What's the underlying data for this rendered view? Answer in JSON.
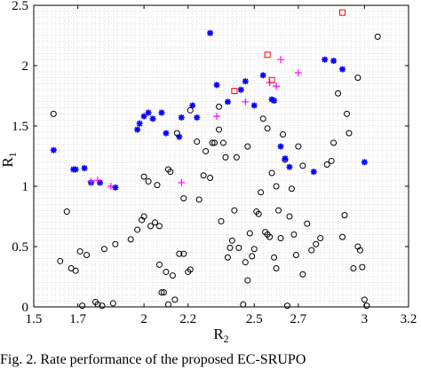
{
  "caption_fragment": "Fig. 2. Rate performance of the proposed EC-SRUPO",
  "chart_data": {
    "type": "scatter",
    "title": "",
    "xlabel": "R",
    "xlabel_sub": "2",
    "ylabel": "R",
    "ylabel_sub": "1",
    "xlim": [
      1.5,
      3.2
    ],
    "ylim": [
      0,
      2.5
    ],
    "xticks": [
      1.5,
      1.7,
      2,
      2.2,
      2.5,
      2.7,
      3,
      3.2
    ],
    "xtick_labels": [
      "1.5",
      "1.7",
      "2",
      "2.2",
      "2.5",
      "2.7",
      "3",
      "3.2"
    ],
    "yticks": [
      0,
      0.5,
      1,
      1.5,
      2,
      2.5
    ],
    "ytick_labels": [
      "0",
      "0.5",
      "1",
      "1.5",
      "2",
      "2.5"
    ],
    "grid": "minor dotted",
    "colors": {
      "circle": "#000000",
      "asterisk": "#0000ff",
      "plus": "#ff00ff",
      "square": "#ff0000"
    },
    "series": [
      {
        "marker": "circle",
        "points": [
          [
            1.59,
            1.6
          ],
          [
            1.65,
            0.79
          ],
          [
            1.62,
            0.38
          ],
          [
            1.67,
            0.32
          ],
          [
            1.69,
            0.3
          ],
          [
            1.71,
            0.46
          ],
          [
            1.74,
            0.43
          ],
          [
            1.78,
            0.04
          ],
          [
            1.79,
            0.02
          ],
          [
            1.81,
            0.01
          ],
          [
            1.82,
            0.48
          ],
          [
            1.87,
            0.52
          ],
          [
            1.94,
            0.56
          ],
          [
            1.97,
            0.64
          ],
          [
            1.99,
            0.72
          ],
          [
            2.0,
            0.75
          ],
          [
            2.0,
            1.08
          ],
          [
            2.02,
            1.04
          ],
          [
            2.03,
            0.67
          ],
          [
            2.05,
            0.7
          ],
          [
            2.06,
            1.01
          ],
          [
            2.07,
            0.35
          ],
          [
            2.08,
            0.12
          ],
          [
            2.09,
            0.12
          ],
          [
            2.1,
            0.29
          ],
          [
            2.11,
            1.14
          ],
          [
            2.12,
            1.12
          ],
          [
            2.13,
            0.26
          ],
          [
            2.14,
            0.06
          ],
          [
            2.15,
            1.44
          ],
          [
            2.16,
            0.44
          ],
          [
            2.18,
            0.44
          ],
          [
            2.2,
            0.29
          ],
          [
            2.21,
            1.63
          ],
          [
            2.24,
            1.37
          ],
          [
            2.25,
            0.89
          ],
          [
            2.27,
            1.09
          ],
          [
            2.28,
            1.29
          ],
          [
            2.3,
            1.07
          ],
          [
            2.31,
            1.36
          ],
          [
            2.32,
            1.36
          ],
          [
            2.34,
            1.47
          ],
          [
            2.35,
            0.71
          ],
          [
            2.36,
            1.36
          ],
          [
            2.37,
            1.24
          ],
          [
            2.38,
            0.41
          ],
          [
            2.39,
            0.49
          ],
          [
            2.4,
            0.55
          ],
          [
            2.41,
            0.8
          ],
          [
            2.42,
            1.24
          ],
          [
            2.43,
            0.49
          ],
          [
            2.45,
            0.02
          ],
          [
            2.46,
            0.37
          ],
          [
            2.47,
            0.22
          ],
          [
            2.48,
            0.61
          ],
          [
            2.49,
            0.42
          ],
          [
            2.5,
            0.48
          ],
          [
            2.51,
            0.79
          ],
          [
            2.52,
            0.77
          ],
          [
            2.53,
            0.95
          ],
          [
            2.54,
            1.56
          ],
          [
            2.55,
            0.62
          ],
          [
            2.56,
            0.6
          ],
          [
            2.57,
            0.58
          ],
          [
            2.58,
            1.11
          ],
          [
            2.59,
            0.41
          ],
          [
            2.6,
            0.32
          ],
          [
            2.61,
            0.8
          ],
          [
            2.62,
            0.57
          ],
          [
            2.63,
            1.43
          ],
          [
            2.64,
            1.22
          ],
          [
            2.65,
            0.01
          ],
          [
            2.66,
            0.75
          ],
          [
            2.67,
            0.98
          ],
          [
            2.68,
            0.6
          ],
          [
            2.69,
            0.43
          ],
          [
            2.7,
            1.33
          ],
          [
            2.72,
            0.27
          ],
          [
            2.74,
            0.69
          ],
          [
            2.76,
            0.47
          ],
          [
            2.78,
            0.52
          ],
          [
            2.8,
            0.57
          ],
          [
            2.83,
            1.18
          ],
          [
            2.86,
            1.36
          ],
          [
            2.88,
            1.77
          ],
          [
            2.9,
            0.58
          ],
          [
            2.91,
            0.76
          ],
          [
            2.92,
            1.6
          ],
          [
            2.93,
            1.44
          ],
          [
            2.95,
            0.32
          ],
          [
            2.97,
            0.5
          ],
          [
            2.98,
            0.47
          ],
          [
            2.99,
            0.33
          ],
          [
            3.0,
            0.06
          ],
          [
            3.01,
            0.01
          ],
          [
            2.97,
            1.9
          ],
          [
            3.06,
            2.24
          ],
          [
            2.85,
            1.21
          ],
          [
            2.72,
            1.17
          ],
          [
            2.6,
            1.0
          ],
          [
            2.47,
            1.33
          ],
          [
            2.56,
            1.48
          ],
          [
            2.34,
            1.66
          ],
          [
            2.18,
            0.9
          ],
          [
            2.07,
            0.67
          ],
          [
            1.86,
            0.03
          ],
          [
            1.72,
            0.01
          ],
          [
            2.11,
            0.02
          ],
          [
            2.21,
            0.31
          ]
        ]
      },
      {
        "marker": "asterisk",
        "points": [
          [
            1.59,
            1.3
          ],
          [
            1.68,
            1.14
          ],
          [
            1.69,
            1.14
          ],
          [
            1.73,
            1.15
          ],
          [
            1.76,
            1.03
          ],
          [
            1.8,
            1.03
          ],
          [
            1.87,
            0.99
          ],
          [
            1.97,
            1.47
          ],
          [
            1.98,
            1.52
          ],
          [
            2.0,
            1.58
          ],
          [
            2.02,
            1.61
          ],
          [
            2.04,
            1.56
          ],
          [
            2.08,
            1.61
          ],
          [
            2.1,
            1.44
          ],
          [
            2.16,
            1.41
          ],
          [
            2.17,
            1.57
          ],
          [
            2.22,
            1.67
          ],
          [
            2.3,
            2.27
          ],
          [
            2.33,
            1.84
          ],
          [
            2.38,
            1.7
          ],
          [
            2.44,
            1.8
          ],
          [
            2.5,
            1.67
          ],
          [
            2.54,
            1.92
          ],
          [
            2.58,
            1.72
          ],
          [
            2.59,
            1.71
          ],
          [
            2.62,
            1.33
          ],
          [
            2.64,
            1.23
          ],
          [
            2.66,
            1.16
          ],
          [
            2.77,
            1.12
          ],
          [
            2.82,
            2.05
          ],
          [
            2.86,
            2.04
          ],
          [
            2.9,
            1.97
          ],
          [
            3.0,
            1.2
          ],
          [
            2.46,
            1.87
          ],
          [
            2.24,
            1.57
          ]
        ]
      },
      {
        "marker": "plus",
        "points": [
          [
            1.76,
            1.04
          ],
          [
            1.79,
            1.05
          ],
          [
            1.85,
            1.0
          ],
          [
            2.17,
            1.03
          ],
          [
            2.33,
            1.58
          ],
          [
            2.46,
            1.7
          ],
          [
            2.57,
            1.86
          ],
          [
            2.6,
            1.83
          ],
          [
            2.62,
            2.05
          ],
          [
            2.7,
            1.94
          ]
        ]
      },
      {
        "marker": "square",
        "points": [
          [
            2.41,
            1.79
          ],
          [
            2.56,
            2.09
          ],
          [
            2.9,
            2.44
          ],
          [
            2.58,
            1.88
          ]
        ]
      }
    ]
  }
}
